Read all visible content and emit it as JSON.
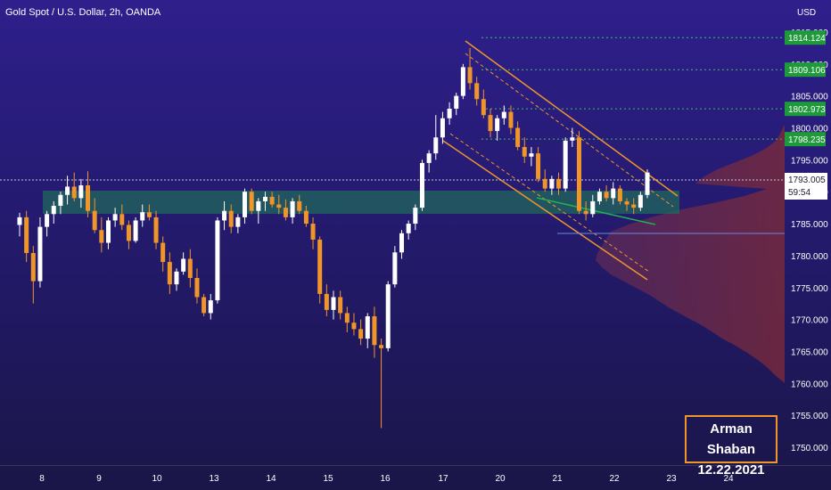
{
  "header": {
    "title": "Gold Spot / U.S. Dollar, 2h, OANDA"
  },
  "signature": {
    "name": "Arman Shaban",
    "date": "12.22.2021"
  },
  "chart_data": {
    "type": "candlestick",
    "symbol": "Gold Spot / U.S. Dollar",
    "interval": "2h",
    "source": "OANDA",
    "currency": "USD",
    "x_labels": [
      "8",
      "9",
      "10",
      "13",
      "14",
      "15",
      "16",
      "17",
      "20",
      "21",
      "22",
      "23",
      "24"
    ],
    "y_ticks": [
      1750,
      1755,
      1760,
      1765,
      1770,
      1775,
      1780,
      1785,
      1790,
      1795,
      1800,
      1805,
      1810,
      1815
    ],
    "y_tick_labels": [
      "1750.000",
      "1755.000",
      "1760.000",
      "1765.000",
      "1770.000",
      "1775.000",
      "1780.000",
      "1785.000",
      "1790.000",
      "1795.000",
      "1800.000",
      "1805.000",
      "1810.000",
      "1815.000"
    ],
    "ylim": [
      1748,
      1820
    ],
    "current_price": {
      "value": "1793.005",
      "countdown": "59:54"
    },
    "price_labels": [
      "1814.124",
      "1809.106",
      "1802.973",
      "1798.235"
    ],
    "candles": [
      [
        1784.8,
        1786.7,
        1783.0,
        1786.0
      ],
      [
        1786.0,
        1787.0,
        1779.0,
        1780.4
      ],
      [
        1780.4,
        1781.5,
        1772.5,
        1776.0
      ],
      [
        1776.0,
        1786.0,
        1775.0,
        1784.5
      ],
      [
        1784.5,
        1787.0,
        1783.0,
        1786.5
      ],
      [
        1786.5,
        1788.5,
        1785.0,
        1787.8
      ],
      [
        1787.8,
        1790.0,
        1786.5,
        1789.5
      ],
      [
        1789.5,
        1792.5,
        1788.0,
        1790.8
      ],
      [
        1790.8,
        1793.0,
        1788.5,
        1789.0
      ],
      [
        1789.0,
        1792.0,
        1787.5,
        1791.0
      ],
      [
        1791.0,
        1793.2,
        1786.0,
        1787.0
      ],
      [
        1787.0,
        1789.0,
        1783.5,
        1784.0
      ],
      [
        1784.0,
        1786.0,
        1780.5,
        1782.0
      ],
      [
        1782.0,
        1786.0,
        1781.0,
        1785.5
      ],
      [
        1785.5,
        1787.5,
        1784.5,
        1786.5
      ],
      [
        1786.5,
        1788.0,
        1784.0,
        1784.8
      ],
      [
        1784.8,
        1785.5,
        1781.0,
        1782.3
      ],
      [
        1782.3,
        1786.0,
        1782.0,
        1785.5
      ],
      [
        1785.5,
        1788.0,
        1784.5,
        1786.8
      ],
      [
        1786.8,
        1788.0,
        1785.5,
        1786.0
      ],
      [
        1786.0,
        1787.0,
        1781.0,
        1782.0
      ],
      [
        1782.0,
        1783.0,
        1777.5,
        1779.0
      ],
      [
        1779.0,
        1780.5,
        1774.0,
        1775.5
      ],
      [
        1775.5,
        1778.0,
        1774.5,
        1777.5
      ],
      [
        1777.5,
        1780.5,
        1777.0,
        1779.5
      ],
      [
        1779.5,
        1781.0,
        1775.0,
        1776.5
      ],
      [
        1776.5,
        1778.0,
        1772.5,
        1773.5
      ],
      [
        1773.5,
        1774.0,
        1770.5,
        1771.0
      ],
      [
        1771.0,
        1774.0,
        1770.0,
        1773.0
      ],
      [
        1773.0,
        1786.0,
        1772.5,
        1785.5
      ],
      [
        1785.5,
        1788.5,
        1784.0,
        1787.0
      ],
      [
        1787.0,
        1788.0,
        1783.5,
        1784.5
      ],
      [
        1784.5,
        1786.5,
        1783.5,
        1786.0
      ],
      [
        1786.0,
        1790.5,
        1785.0,
        1790.0
      ],
      [
        1790.0,
        1790.5,
        1786.5,
        1787.0
      ],
      [
        1787.0,
        1789.0,
        1785.0,
        1788.5
      ],
      [
        1788.5,
        1790.0,
        1787.0,
        1789.2
      ],
      [
        1789.2,
        1790.0,
        1787.5,
        1788.0
      ],
      [
        1788.0,
        1789.5,
        1786.5,
        1787.5
      ],
      [
        1787.5,
        1788.8,
        1785.5,
        1786.0
      ],
      [
        1786.0,
        1789.0,
        1785.0,
        1788.5
      ],
      [
        1788.5,
        1789.5,
        1786.5,
        1787.0
      ],
      [
        1787.0,
        1787.8,
        1784.5,
        1785.0
      ],
      [
        1785.0,
        1786.0,
        1781.0,
        1782.5
      ],
      [
        1782.5,
        1783.0,
        1772.5,
        1774.0
      ],
      [
        1774.0,
        1775.5,
        1770.5,
        1771.5
      ],
      [
        1771.5,
        1774.5,
        1770.0,
        1773.5
      ],
      [
        1773.5,
        1774.5,
        1770.0,
        1771.0
      ],
      [
        1771.0,
        1772.0,
        1768.0,
        1769.5
      ],
      [
        1769.5,
        1771.0,
        1767.5,
        1768.5
      ],
      [
        1768.5,
        1770.0,
        1766.0,
        1767.0
      ],
      [
        1767.0,
        1771.0,
        1765.5,
        1770.5
      ],
      [
        1770.5,
        1772.0,
        1764.0,
        1766.0
      ],
      [
        1766.0,
        1767.0,
        1753.0,
        1765.5
      ],
      [
        1765.5,
        1776.0,
        1765.0,
        1775.5
      ],
      [
        1775.5,
        1781.5,
        1775.0,
        1780.5
      ],
      [
        1780.5,
        1784.0,
        1779.5,
        1783.5
      ],
      [
        1783.5,
        1785.5,
        1782.5,
        1785.0
      ],
      [
        1785.0,
        1788.0,
        1784.0,
        1787.5
      ],
      [
        1787.5,
        1795.0,
        1787.0,
        1794.5
      ],
      [
        1794.5,
        1796.5,
        1793.0,
        1796.0
      ],
      [
        1796.0,
        1802.0,
        1795.0,
        1798.5
      ],
      [
        1798.5,
        1802.5,
        1797.5,
        1801.5
      ],
      [
        1801.5,
        1804.0,
        1800.5,
        1803.0
      ],
      [
        1803.0,
        1805.5,
        1802.0,
        1805.0
      ],
      [
        1805.0,
        1810.0,
        1804.5,
        1809.5
      ],
      [
        1809.5,
        1812.5,
        1806.0,
        1807.0
      ],
      [
        1807.0,
        1808.0,
        1803.5,
        1804.5
      ],
      [
        1804.5,
        1806.0,
        1801.5,
        1802.0
      ],
      [
        1802.0,
        1803.0,
        1798.5,
        1799.5
      ],
      [
        1799.5,
        1802.0,
        1798.0,
        1801.5
      ],
      [
        1801.5,
        1803.5,
        1800.5,
        1802.5
      ],
      [
        1802.5,
        1803.5,
        1799.0,
        1800.0
      ],
      [
        1800.0,
        1801.0,
        1796.5,
        1797.0
      ],
      [
        1797.0,
        1798.5,
        1794.5,
        1795.5
      ],
      [
        1795.5,
        1797.0,
        1794.0,
        1796.0
      ],
      [
        1796.0,
        1797.0,
        1791.5,
        1792.0
      ],
      [
        1792.0,
        1793.5,
        1790.0,
        1790.5
      ],
      [
        1790.5,
        1792.5,
        1789.5,
        1792.0
      ],
      [
        1792.0,
        1793.0,
        1789.5,
        1790.5
      ],
      [
        1790.5,
        1798.5,
        1790.0,
        1798.0
      ],
      [
        1798.0,
        1800.0,
        1797.0,
        1798.5
      ],
      [
        1798.5,
        1799.5,
        1786.5,
        1787.0
      ],
      [
        1787.0,
        1788.5,
        1785.5,
        1786.5
      ],
      [
        1786.5,
        1789.5,
        1786.0,
        1788.5
      ],
      [
        1788.5,
        1790.5,
        1788.0,
        1790.0
      ],
      [
        1790.0,
        1791.0,
        1788.5,
        1789.0
      ],
      [
        1789.0,
        1791.5,
        1788.0,
        1790.5
      ],
      [
        1790.5,
        1791.0,
        1788.0,
        1788.5
      ],
      [
        1788.5,
        1789.0,
        1787.0,
        1788.0
      ],
      [
        1788.0,
        1789.0,
        1786.5,
        1787.5
      ],
      [
        1787.5,
        1790.0,
        1787.0,
        1789.5
      ],
      [
        1789.5,
        1793.5,
        1789.0,
        1793.0
      ]
    ],
    "annotations": [
      "descending channel",
      "support zone",
      "volume profile"
    ]
  }
}
